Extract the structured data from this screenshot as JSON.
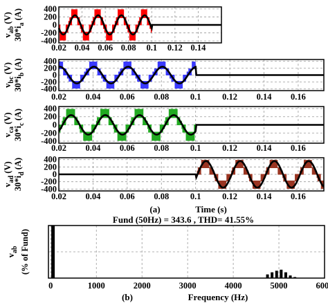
{
  "panel_labels": {
    "a": "(a)",
    "b": "(b)"
  },
  "chart_data": [
    {
      "id": "vab",
      "type": "line",
      "ylabel_parts": [
        "v",
        "ab",
        " (V)",
        "30*i",
        "a",
        " (A)"
      ],
      "xlim": [
        0.02,
        0.16
      ],
      "ylim": [
        -450,
        450
      ],
      "xticks": [
        "0.02",
        "0.04",
        "0.06",
        "0.08",
        "0.1",
        "0.12",
        "0.14"
      ],
      "yticks": [
        "400",
        "200",
        "0",
        "-200",
        "-400"
      ],
      "xlabel": "",
      "grid": true,
      "colors": {
        "voltage": "#ff0000",
        "current": "#000000"
      },
      "series": [
        {
          "description": "v_ab PWM line voltage",
          "levels": [
            0,
            180,
            380
          ],
          "active_range": [
            0.02,
            0.1
          ]
        },
        {
          "description": "30*i_a current",
          "amplitude": 240,
          "freq_hz": 50,
          "phase_deg": 200,
          "active_range": [
            0.02,
            0.1
          ],
          "after_value": 0
        }
      ]
    },
    {
      "id": "vbc",
      "type": "line",
      "ylabel_parts": [
        "v",
        "bc",
        " (V)",
        "30*i",
        "b",
        " (A)"
      ],
      "xlim": [
        0.02,
        0.175
      ],
      "ylim": [
        -450,
        450
      ],
      "xticks": [
        "0.02",
        "0.04",
        "0.06",
        "0.08",
        "0.1",
        "0.12",
        "0.14",
        "0.16"
      ],
      "yticks": [
        "400",
        "200",
        "0",
        "-200",
        "-400"
      ],
      "xlabel": "",
      "grid": true,
      "colors": {
        "voltage": "#3a3aff",
        "current": "#000000"
      },
      "series": [
        {
          "description": "v_bc PWM line voltage",
          "levels": [
            0,
            180,
            380
          ],
          "active_range": [
            0.02,
            0.1
          ]
        },
        {
          "description": "30*i_b current",
          "amplitude": 240,
          "freq_hz": 50,
          "phase_deg": 80,
          "active_range": [
            0.02,
            0.1
          ],
          "after_value": 0
        }
      ]
    },
    {
      "id": "vca",
      "type": "line",
      "ylabel_parts": [
        "v",
        "ca",
        " (V)",
        "30*i",
        "c",
        " (A)"
      ],
      "xlim": [
        0.02,
        0.175
      ],
      "ylim": [
        -450,
        450
      ],
      "xticks": [
        "0.02",
        "0.04",
        "0.06",
        "0.08",
        "0.1",
        "0.12",
        "0.14",
        "0.16"
      ],
      "yticks": [
        "400",
        "200",
        "0",
        "-200",
        "-400"
      ],
      "xlabel": "",
      "grid": true,
      "colors": {
        "voltage": "#22aa22",
        "current": "#000000"
      },
      "series": [
        {
          "description": "v_ca PWM line voltage",
          "levels": [
            0,
            180,
            380
          ],
          "active_range": [
            0.02,
            0.1
          ]
        },
        {
          "description": "30*i_c current",
          "amplitude": 240,
          "freq_hz": 50,
          "phase_deg": -40,
          "active_range": [
            0.02,
            0.1
          ],
          "after_value": 0
        }
      ]
    },
    {
      "id": "vad",
      "type": "line",
      "ylabel_parts": [
        "v",
        "ad",
        " (V)",
        "30*i",
        "d",
        " (A)"
      ],
      "xlim": [
        0.02,
        0.175
      ],
      "ylim": [
        -450,
        450
      ],
      "xticks": [
        "0.02",
        "0.04",
        "0.06",
        "0.08",
        "0.1",
        "0.12",
        "0.14",
        "0.16"
      ],
      "yticks": [
        "400",
        "200",
        "0",
        "-200",
        "-400"
      ],
      "xlabel": "Time (s)",
      "grid": true,
      "colors": {
        "voltage": "#9a3522",
        "current": "#000000"
      },
      "series": [
        {
          "description": "v_ad PWM line voltage",
          "levels": [
            0,
            180,
            380
          ],
          "active_range": [
            0.1,
            0.175
          ]
        },
        {
          "description": "30*i_d current",
          "amplitude": 360,
          "freq_hz": 50,
          "phase_deg": -20,
          "active_range": [
            0.1,
            0.175
          ],
          "before_value": 0
        }
      ]
    },
    {
      "id": "spectrum",
      "type": "bar",
      "title": "Fund (50Hz) = 343.6 , THD= 41.55%",
      "ylabel_parts": [
        "v",
        "ab",
        "(% of Fund)"
      ],
      "xlabel": "Frequency (Hz)",
      "xlim": [
        -50,
        6000
      ],
      "ylim": [
        0,
        100
      ],
      "xticks": [
        "0",
        "1000",
        "2000",
        "3000",
        "4000",
        "5000",
        "6000"
      ],
      "yticks": [
        "100",
        "50",
        "0"
      ],
      "grid": true,
      "bars": [
        {
          "x": 50,
          "value": 100
        },
        {
          "x": 4750,
          "value": 7
        },
        {
          "x": 4850,
          "value": 11
        },
        {
          "x": 4950,
          "value": 14
        },
        {
          "x": 5050,
          "value": 16
        },
        {
          "x": 5150,
          "value": 11
        },
        {
          "x": 5250,
          "value": 5
        },
        {
          "x": 5350,
          "value": 2
        }
      ]
    }
  ]
}
